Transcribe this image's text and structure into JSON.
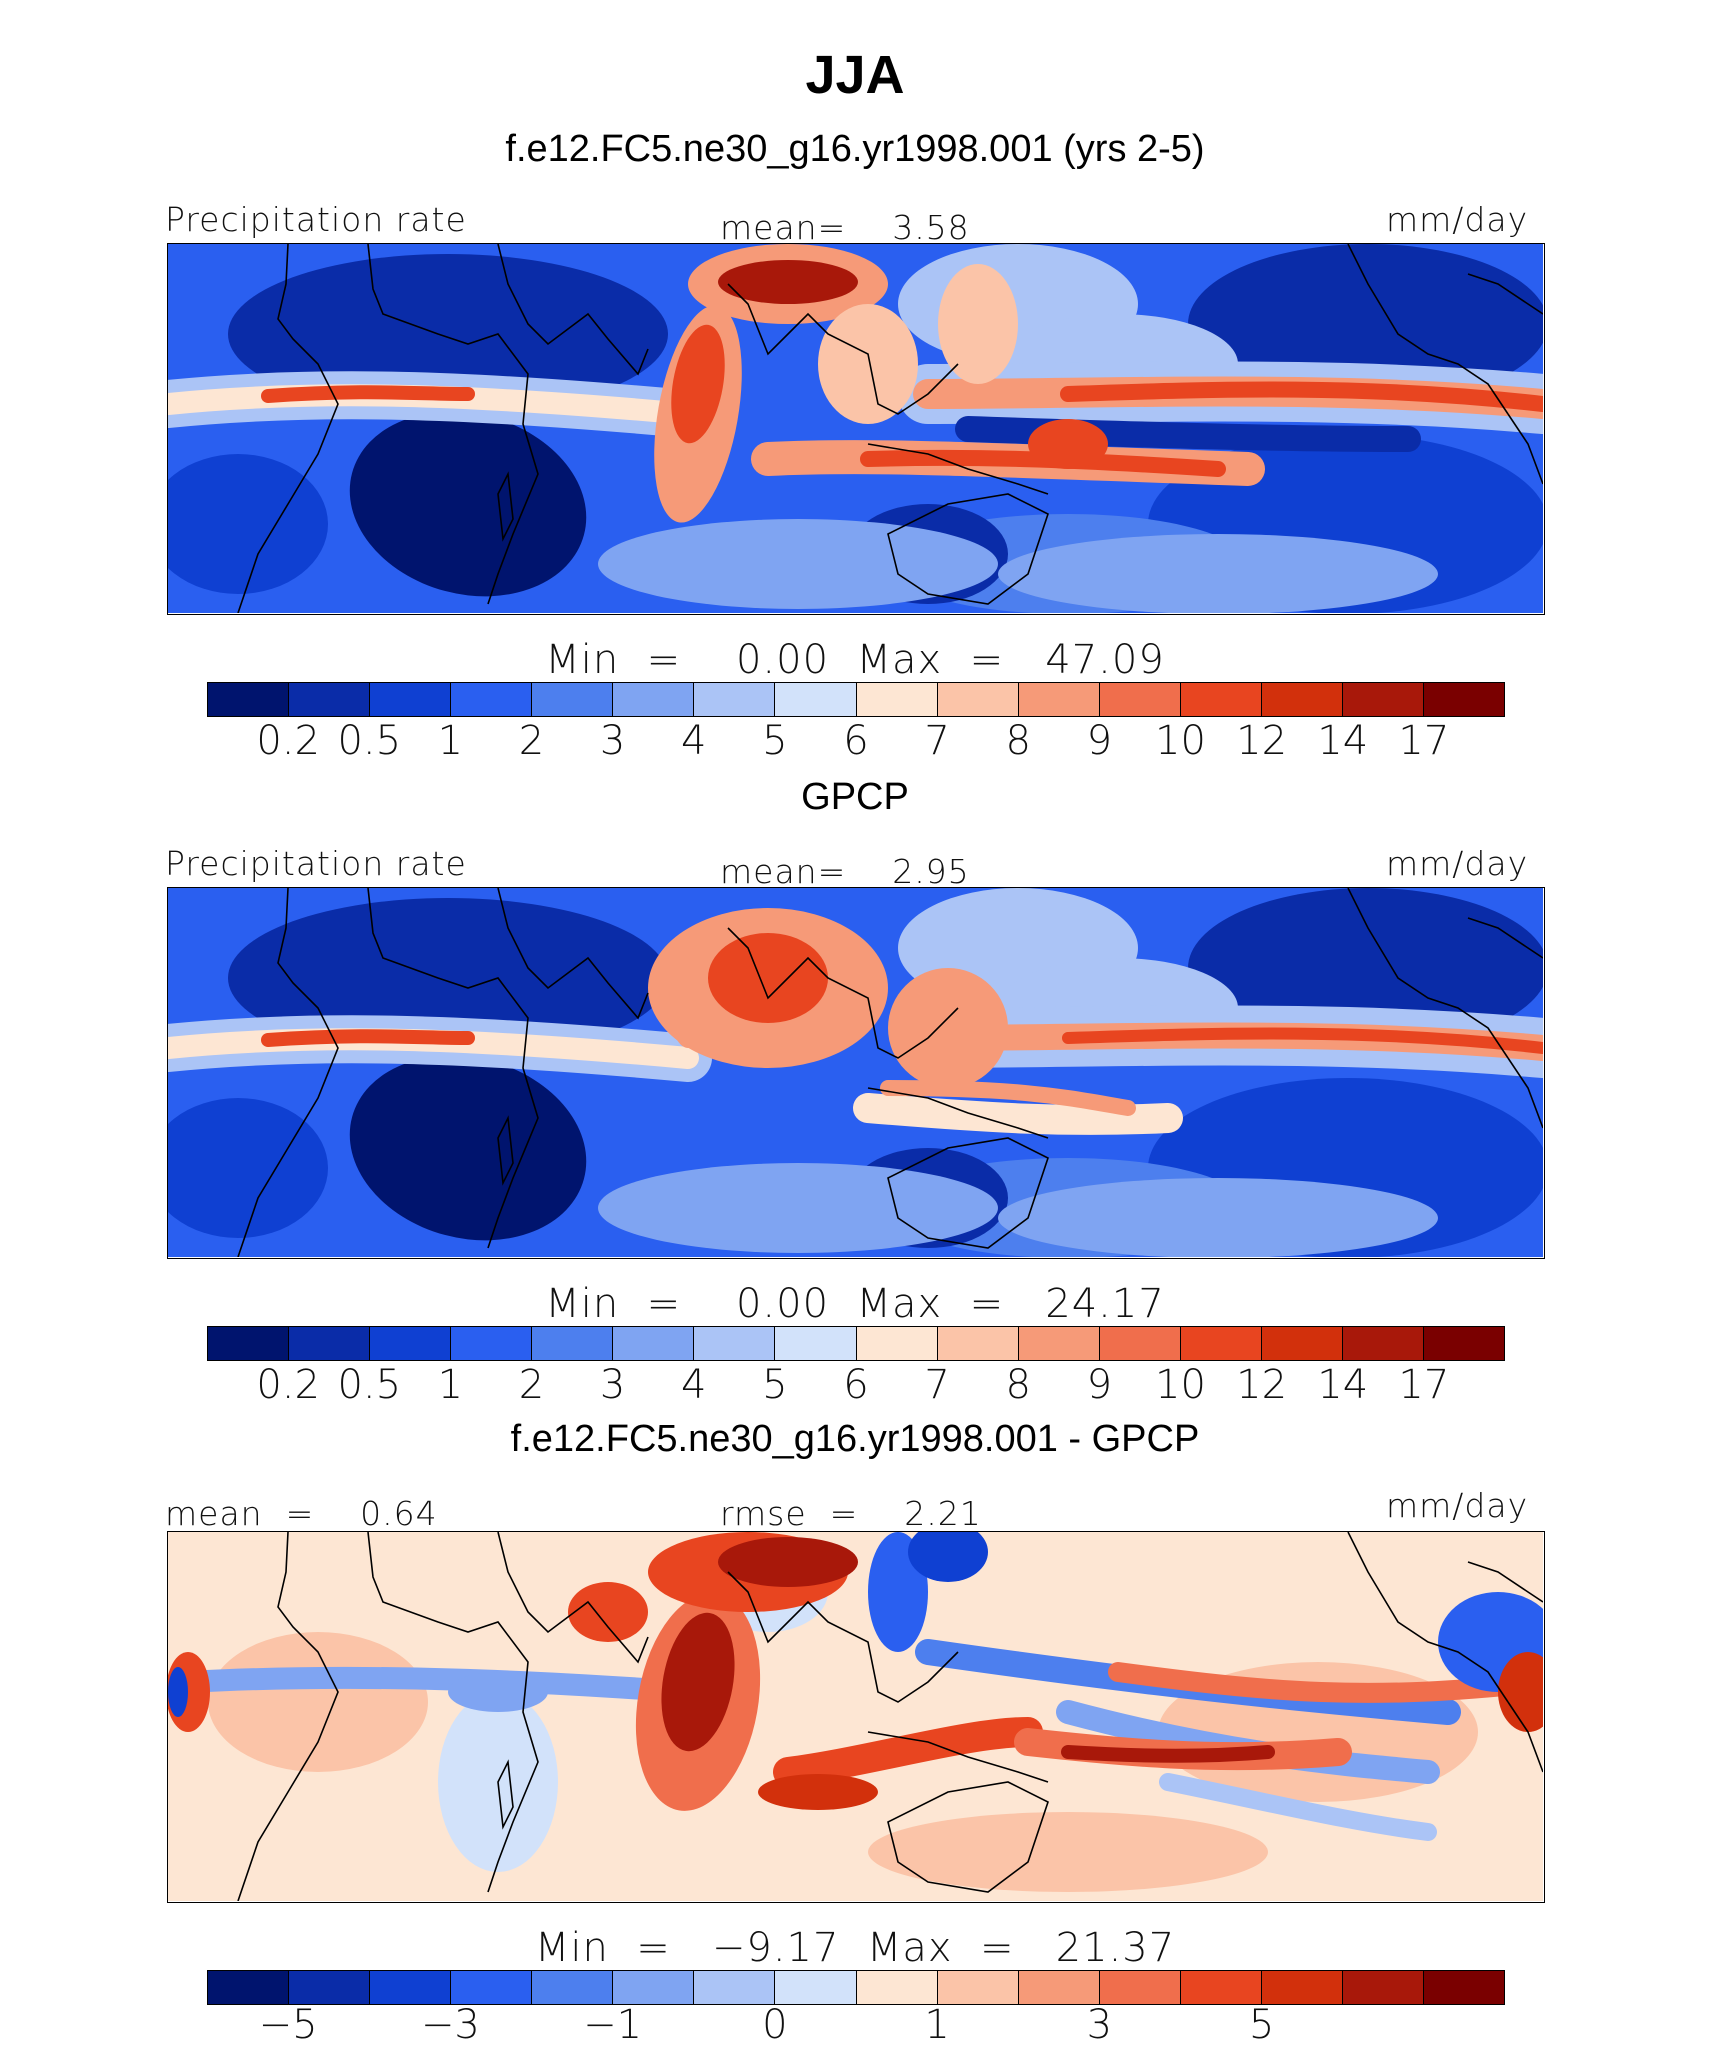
{
  "title": "JJA",
  "panels": [
    {
      "subtitle": "f.e12.FC5.ne30_g16.yr1998.001 (yrs 2-5)",
      "left_label": "Precipitation rate",
      "center_label": "mean=    3.58",
      "right_label": "mm/day",
      "minmax": "Min  =    0.00  Max  =   47.09",
      "mode": "model"
    },
    {
      "subtitle": "GPCP",
      "left_label": "Precipitation rate",
      "center_label": "mean=    2.95",
      "right_label": "mm/day",
      "minmax": "Min  =    0.00  Max  =   24.17",
      "mode": "obs"
    },
    {
      "subtitle": "f.e12.FC5.ne30_g16.yr1998.001 - GPCP",
      "left_label": "mean  =    0.64",
      "center_label": "rmse  =    2.21",
      "right_label": "mm/day",
      "minmax": "Min  =   −9.17  Max  =   21.37",
      "mode": "diff"
    }
  ],
  "colorbar_abs": {
    "colors": [
      "#00146e",
      "#0a2ca8",
      "#0f40d2",
      "#2a5ff0",
      "#4d7fee",
      "#7fa4f2",
      "#abc4f6",
      "#d2e2fa",
      "#fde6d3",
      "#fbc4a8",
      "#f69a78",
      "#f06e4c",
      "#e84520",
      "#d2300c",
      "#a8180a",
      "#7a0000"
    ],
    "ticks": [
      "0.2",
      "0.5",
      "1",
      "2",
      "3",
      "4",
      "5",
      "6",
      "7",
      "8",
      "9",
      "10",
      "12",
      "14",
      "17"
    ]
  },
  "colorbar_diff": {
    "colors": [
      "#00146e",
      "#0a2ca8",
      "#0f40d2",
      "#2a5ff0",
      "#4d7fee",
      "#7fa4f2",
      "#abc4f6",
      "#d2e2fa",
      "#fde6d3",
      "#fbc4a8",
      "#f69a78",
      "#f06e4c",
      "#e84520",
      "#d2300c",
      "#a8180a",
      "#7a0000"
    ],
    "ticks": [
      "−5",
      "−3",
      "−1",
      "0",
      "1",
      "3",
      "5"
    ]
  }
}
